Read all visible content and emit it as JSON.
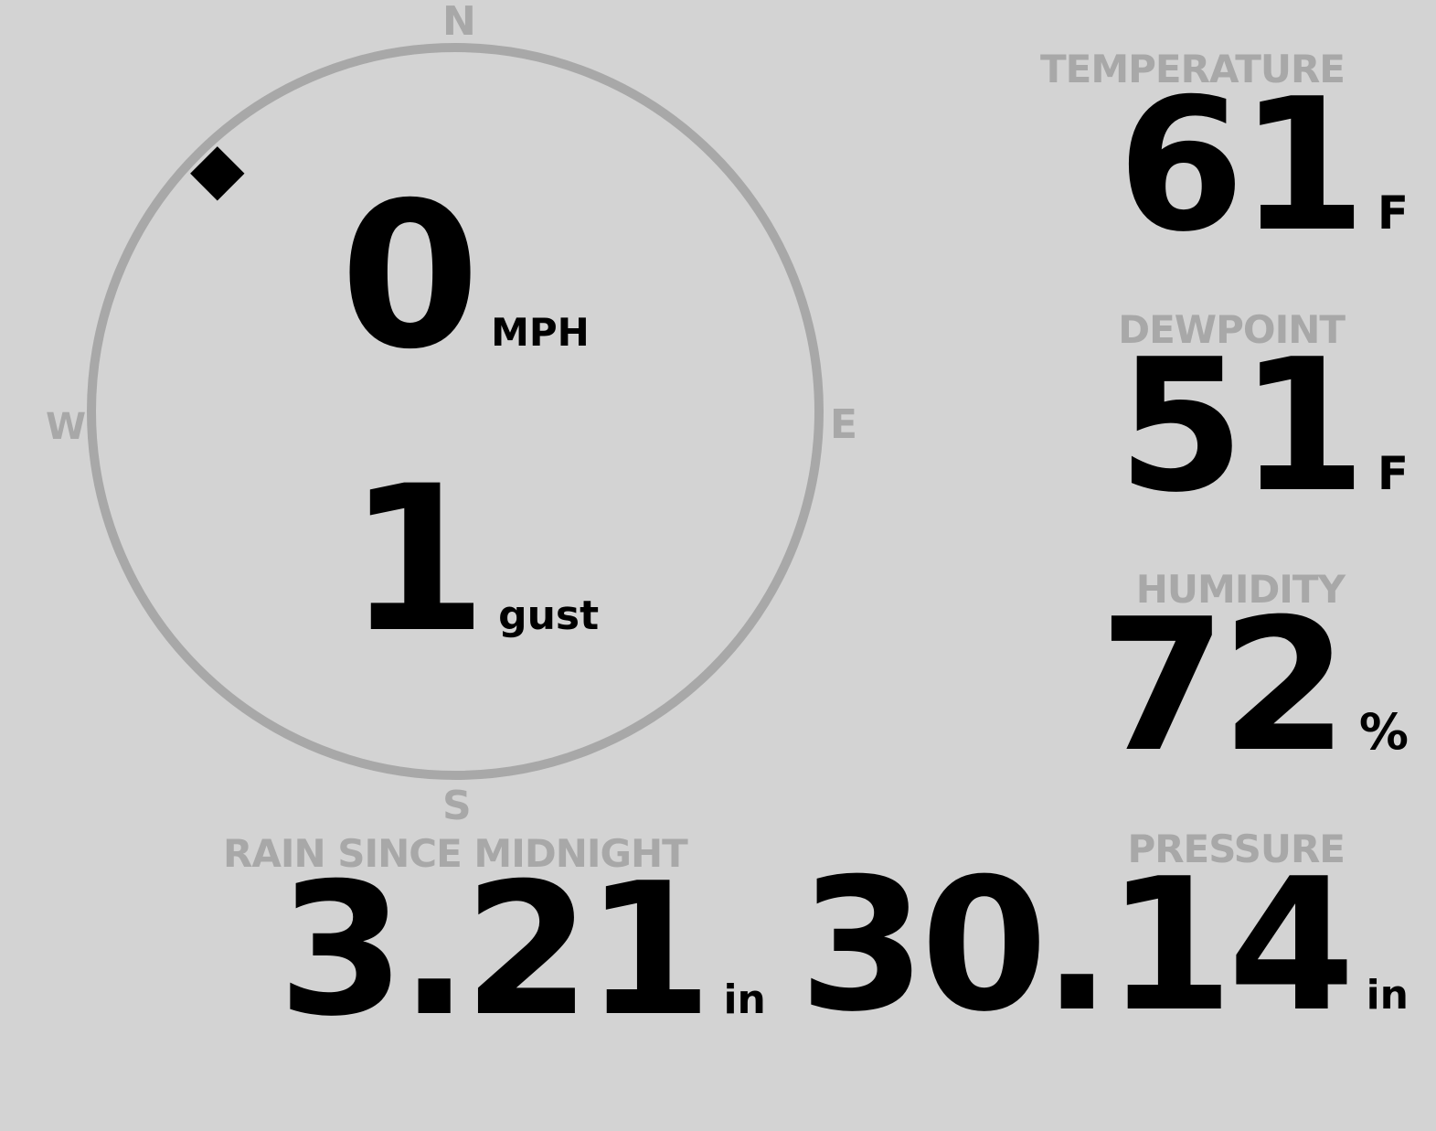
{
  "wind": {
    "compass": {
      "n": "N",
      "e": "E",
      "s": "S",
      "w": "W"
    },
    "direction_degrees": 315,
    "speed": "0",
    "speed_unit": "MPH",
    "gust": "1",
    "gust_unit": "gust"
  },
  "temperature": {
    "label": "TEMPERATURE",
    "value": "61",
    "unit": "F"
  },
  "dewpoint": {
    "label": "DEWPOINT",
    "value": "51",
    "unit": "F"
  },
  "humidity": {
    "label": "HUMIDITY",
    "value": "72",
    "unit": "%"
  },
  "rain": {
    "label": "RAIN SINCE MIDNIGHT",
    "value": "3.21",
    "unit": "in"
  },
  "pressure": {
    "label": "PRESSURE",
    "value": "30.14",
    "unit": "in"
  },
  "colors": {
    "background": "#d3d3d3",
    "muted": "#a8a8a8",
    "value": "#000000"
  }
}
